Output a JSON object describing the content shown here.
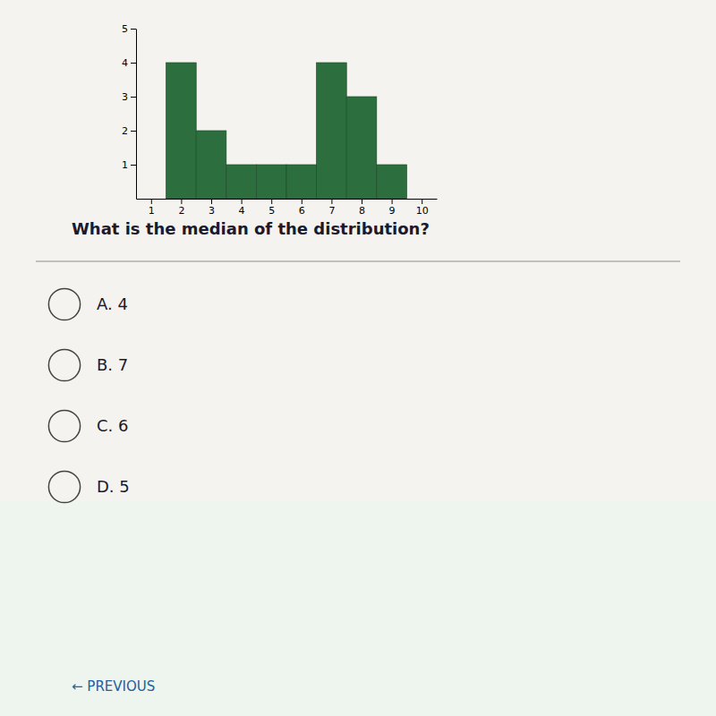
{
  "chart_data": {
    "type": "bar",
    "title": "What is the median of the distribution?",
    "x": [
      2,
      3,
      4,
      5,
      6,
      7,
      8,
      9
    ],
    "values": [
      4,
      2,
      1,
      1,
      1,
      4,
      3,
      1
    ],
    "color": "#2d6e3e",
    "xlim": [
      0.5,
      10.5
    ],
    "xticks": [
      1,
      2,
      3,
      4,
      5,
      6,
      7,
      8,
      9,
      10
    ],
    "ylim": [
      0,
      5
    ],
    "yticks": [
      1,
      2,
      3,
      4,
      5
    ],
    "grid": false,
    "annotations": [
      "A.  4",
      "B.  7",
      "C.  6",
      "D.  5",
      "← PREVIOUS"
    ]
  }
}
